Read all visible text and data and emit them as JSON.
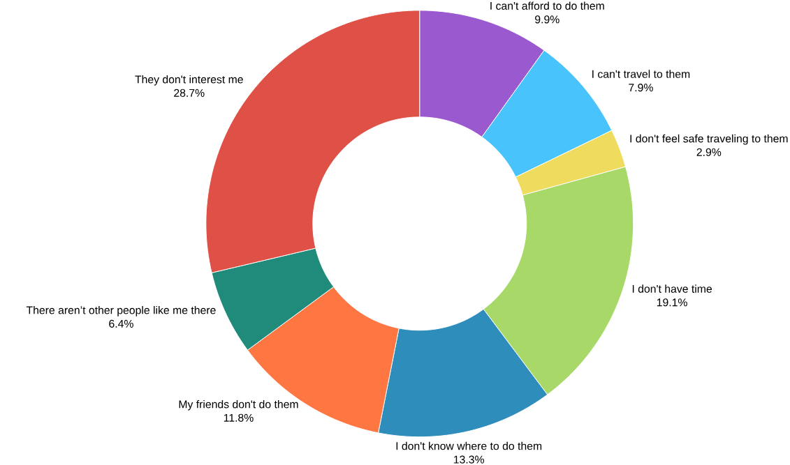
{
  "chart_data": {
    "type": "donut",
    "categories": [
      "I can't afford to do them",
      "I can't travel to them",
      "I don't feel safe traveling to them",
      "I don't have time",
      "I don't know where to do them",
      "My friends don't do them",
      "There aren’t other people like me there",
      "They don't interest me"
    ],
    "values": [
      9.9,
      7.9,
      2.9,
      19.1,
      13.3,
      11.8,
      6.4,
      28.7
    ],
    "value_labels": [
      "9.9%",
      "7.9%",
      "2.9%",
      "19.1%",
      "13.3%",
      "11.8%",
      "6.4%",
      "28.7%"
    ],
    "colors": [
      "#9b59d0",
      "#48c3fc",
      "#efdb5e",
      "#a8d868",
      "#2e8dbb",
      "#fe7743",
      "#218b7b",
      "#df5146"
    ]
  }
}
